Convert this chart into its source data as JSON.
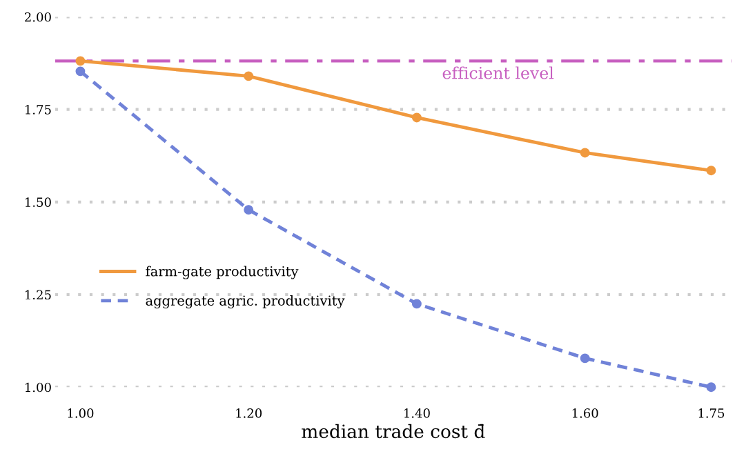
{
  "chart_data": {
    "type": "line",
    "xlabel": "median trade cost d̄",
    "x": [
      1.0,
      1.2,
      1.4,
      1.6,
      1.75
    ],
    "series": [
      {
        "name": "farm-gate productivity",
        "color": "#f0993e",
        "values": [
          1.881,
          1.84,
          1.728,
          1.633,
          1.585
        ],
        "line_style": "solid"
      },
      {
        "name": "aggregate agric. productivity",
        "color": "#7082d8",
        "values": [
          1.853,
          1.479,
          1.225,
          1.078,
          1.0
        ],
        "line_style": "dashed"
      }
    ],
    "xlim": [
      0.97,
      1.774
    ],
    "xticks": [
      {
        "value": 1.0,
        "label": "1.00"
      },
      {
        "value": 1.2,
        "label": "1.20"
      },
      {
        "value": 1.4,
        "label": "1.40"
      },
      {
        "value": 1.6,
        "label": "1.60"
      },
      {
        "value": 1.75,
        "label": "1.75"
      }
    ],
    "ylim": [
      1.0,
      2.0
    ],
    "yticks": [
      {
        "value": 1.0,
        "label": "1.00"
      },
      {
        "value": 1.25,
        "label": "1.25"
      },
      {
        "value": 1.5,
        "label": "1.50"
      },
      {
        "value": 1.75,
        "label": "1.75"
      },
      {
        "value": 2.0,
        "label": "2.00"
      }
    ],
    "ref_lines": [
      {
        "axis": "y",
        "value": 1.881,
        "label": "efficient level",
        "color": "#c75fc0",
        "line_style": "dashdot"
      }
    ],
    "grid": "y",
    "legend": "left",
    "marker": "circle"
  }
}
